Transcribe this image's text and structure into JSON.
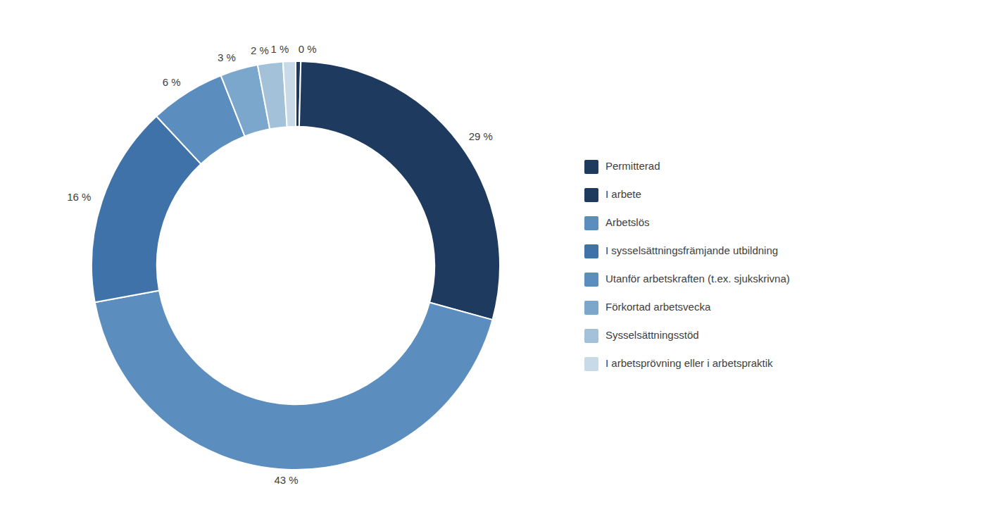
{
  "chart_data": {
    "type": "donut",
    "categories": [
      "Permitterad",
      "I arbete",
      "Arbetslös",
      "I sysselsättningsfrämjande utbildning",
      "Utanför arbetskraften (t.ex. sjukskrivna)",
      "Förkortad arbetsvecka",
      "Sysselsättningsstöd",
      "I arbetsprövning eller i arbetspraktik"
    ],
    "values": [
      0.4,
      29,
      43,
      16,
      6,
      3,
      2,
      1
    ],
    "value_labels": [
      "0 %",
      "29 %",
      "43 %",
      "16 %",
      "6 %",
      "3 %",
      "2 %",
      "1 %"
    ],
    "colors": [
      "#1F3A5F",
      "#1F3A5F",
      "#5B8DBE",
      "#3F72A8",
      "#5B8DBE",
      "#7BA7CC",
      "#A3C1D9",
      "#C8D9E8"
    ],
    "data_labels": true,
    "legend": "right"
  }
}
